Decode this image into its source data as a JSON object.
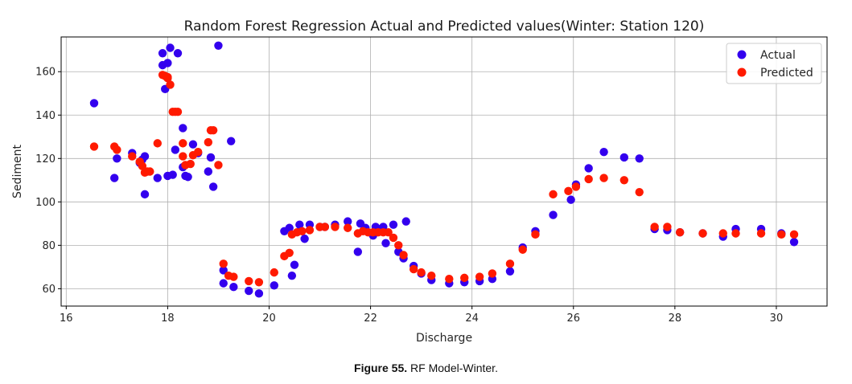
{
  "chart_data": {
    "type": "scatter",
    "title": "Random Forest Regression Actual and Predicted values(Winter: Station 120)",
    "xlabel": "Discharge",
    "ylabel": "Sediment",
    "xlim": [
      15.9,
      31.0
    ],
    "ylim": [
      52,
      176
    ],
    "xticks": [
      16,
      18,
      20,
      22,
      24,
      26,
      28,
      30
    ],
    "yticks": [
      60,
      80,
      100,
      120,
      140,
      160
    ],
    "grid": true,
    "legend_position": "top-right",
    "series": [
      {
        "name": "Actual",
        "color": "#3300ee",
        "points": [
          [
            16.55,
            145.5
          ],
          [
            16.95,
            111
          ],
          [
            17.0,
            120
          ],
          [
            17.3,
            122.5
          ],
          [
            17.45,
            118
          ],
          [
            17.5,
            119.5
          ],
          [
            17.55,
            121
          ],
          [
            17.55,
            103.5
          ],
          [
            17.8,
            111
          ],
          [
            17.9,
            168.5
          ],
          [
            17.9,
            163
          ],
          [
            17.95,
            152
          ],
          [
            18.0,
            112
          ],
          [
            18.0,
            164
          ],
          [
            18.05,
            171
          ],
          [
            18.1,
            112.5
          ],
          [
            18.15,
            124
          ],
          [
            18.2,
            168.5
          ],
          [
            18.3,
            134
          ],
          [
            18.3,
            116
          ],
          [
            18.35,
            112
          ],
          [
            18.4,
            111.5
          ],
          [
            18.5,
            126.5
          ],
          [
            18.6,
            122.5
          ],
          [
            18.8,
            114
          ],
          [
            18.85,
            120.5
          ],
          [
            18.9,
            107
          ],
          [
            19.0,
            172
          ],
          [
            19.1,
            68.5
          ],
          [
            19.1,
            62.5
          ],
          [
            19.25,
            128
          ],
          [
            19.3,
            60.8
          ],
          [
            19.6,
            59
          ],
          [
            19.8,
            57.8
          ],
          [
            20.1,
            61.5
          ],
          [
            20.3,
            86.5
          ],
          [
            20.4,
            88
          ],
          [
            20.45,
            66
          ],
          [
            20.5,
            71
          ],
          [
            20.6,
            89.5
          ],
          [
            20.7,
            83
          ],
          [
            20.8,
            89.5
          ],
          [
            21.0,
            88.5
          ],
          [
            21.1,
            88.5
          ],
          [
            21.3,
            89.5
          ],
          [
            21.55,
            91
          ],
          [
            21.75,
            77
          ],
          [
            21.8,
            90
          ],
          [
            21.9,
            88
          ],
          [
            22.05,
            84.5
          ],
          [
            22.1,
            88.5
          ],
          [
            22.25,
            88.5
          ],
          [
            22.3,
            81
          ],
          [
            22.45,
            89.5
          ],
          [
            22.55,
            77
          ],
          [
            22.65,
            74
          ],
          [
            22.7,
            91
          ],
          [
            22.85,
            70.5
          ],
          [
            23.0,
            67
          ],
          [
            23.2,
            64
          ],
          [
            23.55,
            62.5
          ],
          [
            23.85,
            63
          ],
          [
            24.15,
            63.5
          ],
          [
            24.4,
            64.5
          ],
          [
            24.75,
            68
          ],
          [
            25.0,
            79
          ],
          [
            25.25,
            86.5
          ],
          [
            25.6,
            94
          ],
          [
            25.95,
            101
          ],
          [
            26.05,
            108
          ],
          [
            26.3,
            115.5
          ],
          [
            26.6,
            123
          ],
          [
            27.0,
            120.5
          ],
          [
            27.3,
            120
          ],
          [
            27.6,
            87.5
          ],
          [
            27.85,
            87
          ],
          [
            28.1,
            86
          ],
          [
            28.55,
            85.5
          ],
          [
            28.95,
            84
          ],
          [
            29.2,
            87.5
          ],
          [
            29.7,
            87.5
          ],
          [
            30.1,
            85.5
          ],
          [
            30.35,
            81.5
          ]
        ]
      },
      {
        "name": "Predicted",
        "color": "#ff1a00",
        "points": [
          [
            16.55,
            125.5
          ],
          [
            16.95,
            125.5
          ],
          [
            17.0,
            124
          ],
          [
            17.3,
            121
          ],
          [
            17.45,
            118.5
          ],
          [
            17.5,
            116.5
          ],
          [
            17.55,
            113.5
          ],
          [
            17.6,
            114
          ],
          [
            17.65,
            114
          ],
          [
            17.8,
            127
          ],
          [
            17.9,
            158.5
          ],
          [
            17.95,
            158
          ],
          [
            18.0,
            157.5
          ],
          [
            18.0,
            157
          ],
          [
            18.05,
            154
          ],
          [
            18.1,
            141.5
          ],
          [
            18.15,
            141.5
          ],
          [
            18.2,
            141.5
          ],
          [
            18.3,
            127
          ],
          [
            18.3,
            121
          ],
          [
            18.35,
            117
          ],
          [
            18.45,
            117.5
          ],
          [
            18.5,
            121.5
          ],
          [
            18.6,
            123
          ],
          [
            18.8,
            127.5
          ],
          [
            18.85,
            133
          ],
          [
            18.9,
            133
          ],
          [
            19.0,
            117
          ],
          [
            19.1,
            71.5
          ],
          [
            19.2,
            66
          ],
          [
            19.3,
            65.5
          ],
          [
            19.6,
            63.5
          ],
          [
            19.8,
            63
          ],
          [
            20.1,
            67.5
          ],
          [
            20.3,
            75
          ],
          [
            20.4,
            76.5
          ],
          [
            20.45,
            85
          ],
          [
            20.55,
            86
          ],
          [
            20.65,
            86.5
          ],
          [
            20.8,
            87
          ],
          [
            21.0,
            88.5
          ],
          [
            21.1,
            88.5
          ],
          [
            21.3,
            88.5
          ],
          [
            21.55,
            88
          ],
          [
            21.75,
            85.5
          ],
          [
            21.85,
            86.5
          ],
          [
            21.95,
            86
          ],
          [
            22.05,
            86
          ],
          [
            22.15,
            86
          ],
          [
            22.25,
            86
          ],
          [
            22.35,
            86
          ],
          [
            22.45,
            83.5
          ],
          [
            22.55,
            80
          ],
          [
            22.65,
            75.5
          ],
          [
            22.85,
            69
          ],
          [
            23.0,
            67.5
          ],
          [
            23.2,
            66
          ],
          [
            23.55,
            64.5
          ],
          [
            23.85,
            65
          ],
          [
            24.15,
            65.5
          ],
          [
            24.4,
            67
          ],
          [
            24.75,
            71.5
          ],
          [
            25.0,
            78
          ],
          [
            25.25,
            85
          ],
          [
            25.6,
            103.5
          ],
          [
            25.9,
            105
          ],
          [
            26.05,
            107
          ],
          [
            26.3,
            110.5
          ],
          [
            26.6,
            111
          ],
          [
            27.0,
            110
          ],
          [
            27.3,
            104.5
          ],
          [
            27.6,
            88.5
          ],
          [
            27.85,
            88.5
          ],
          [
            28.1,
            86
          ],
          [
            28.55,
            85.5
          ],
          [
            28.95,
            85.5
          ],
          [
            29.2,
            85.5
          ],
          [
            29.7,
            85.5
          ],
          [
            30.1,
            85
          ],
          [
            30.35,
            85
          ]
        ]
      }
    ]
  },
  "caption": {
    "label": "Figure 55.",
    "text": " RF Model-Winter."
  }
}
